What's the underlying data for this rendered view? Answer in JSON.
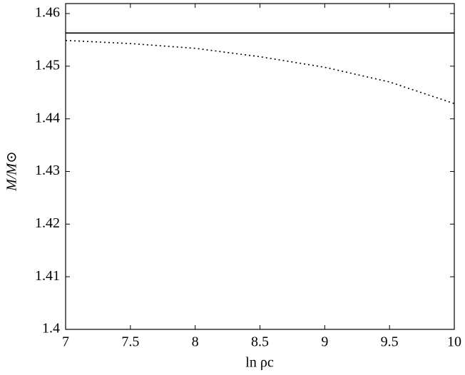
{
  "chart_data": {
    "type": "line",
    "x_label": "ln ρc",
    "y_label": "M/M⊙",
    "x": [
      7,
      7.5,
      8,
      8.5,
      9,
      9.5,
      10
    ],
    "series": [
      {
        "color": "#000000",
        "style": "solid",
        "values": [
          1.4563,
          1.4563,
          1.4563,
          1.4563,
          1.4563,
          1.4563,
          1.4563
        ]
      },
      {
        "color": "#000000",
        "style": "dotted",
        "values": [
          1.4549,
          1.4543,
          1.4534,
          1.4518,
          1.4498,
          1.447,
          1.4429
        ]
      }
    ],
    "xlim": [
      7,
      10
    ],
    "ylim": [
      1.4,
      1.4619
    ],
    "xticks": [
      7,
      7.5,
      8,
      8.5,
      9,
      9.5,
      10
    ],
    "yticks": [
      1.4,
      1.41,
      1.42,
      1.43,
      1.44,
      1.45,
      1.46
    ],
    "grid": false
  }
}
